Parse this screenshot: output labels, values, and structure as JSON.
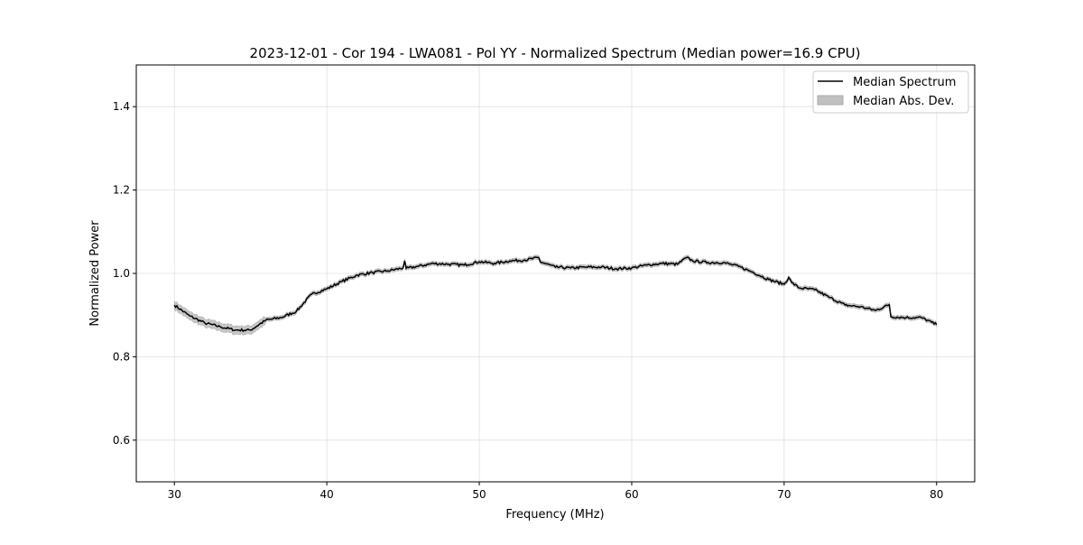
{
  "chart_data": {
    "type": "line",
    "title": "2023-12-01 - Cor 194 - LWA081 - Pol YY - Normalized Spectrum (Median power=16.9 CPU)",
    "xlabel": "Frequency (MHz)",
    "ylabel": "Normalized Power",
    "xlim": [
      27.5,
      82.5
    ],
    "ylim": [
      0.5,
      1.5
    ],
    "xticks": [
      30,
      40,
      50,
      60,
      70,
      80
    ],
    "yticks": [
      0.6,
      0.8,
      1.0,
      1.2,
      1.4
    ],
    "ytick_labels": [
      "0.6",
      "0.8",
      "1.0",
      "1.2",
      "1.4"
    ],
    "grid": true,
    "legend_position": "top-right",
    "series": [
      {
        "name": "Median Spectrum",
        "color": "#000000",
        "x": [
          30,
          31,
          32,
          33,
          34,
          35,
          36,
          37,
          38,
          39,
          40,
          41,
          42,
          43,
          44,
          45,
          45.1,
          45.2,
          46,
          47,
          48,
          49,
          50,
          51,
          52,
          53,
          53.9,
          54,
          55,
          56,
          57,
          58,
          59,
          60,
          61,
          62,
          63,
          63.6,
          64,
          65,
          66,
          67,
          68,
          69,
          70,
          70.3,
          70.5,
          71,
          72,
          73,
          74,
          75,
          76,
          76.9,
          77,
          78,
          79,
          80
        ],
        "y": [
          0.924,
          0.898,
          0.881,
          0.872,
          0.864,
          0.864,
          0.888,
          0.894,
          0.909,
          0.95,
          0.963,
          0.981,
          0.996,
          1.002,
          1.006,
          1.013,
          1.03,
          1.012,
          1.017,
          1.024,
          1.022,
          1.02,
          1.028,
          1.024,
          1.03,
          1.032,
          1.038,
          1.028,
          1.015,
          1.013,
          1.015,
          1.015,
          1.011,
          1.013,
          1.02,
          1.024,
          1.022,
          1.038,
          1.03,
          1.026,
          1.026,
          1.017,
          1.002,
          0.985,
          0.974,
          0.99,
          0.978,
          0.965,
          0.961,
          0.942,
          0.924,
          0.92,
          0.911,
          0.925,
          0.896,
          0.894,
          0.894,
          0.877
        ]
      },
      {
        "name": "Median Abs. Dev.",
        "color": "#c0c0c0",
        "half_width_low": 0.01,
        "half_width_high": 0.005
      }
    ]
  }
}
